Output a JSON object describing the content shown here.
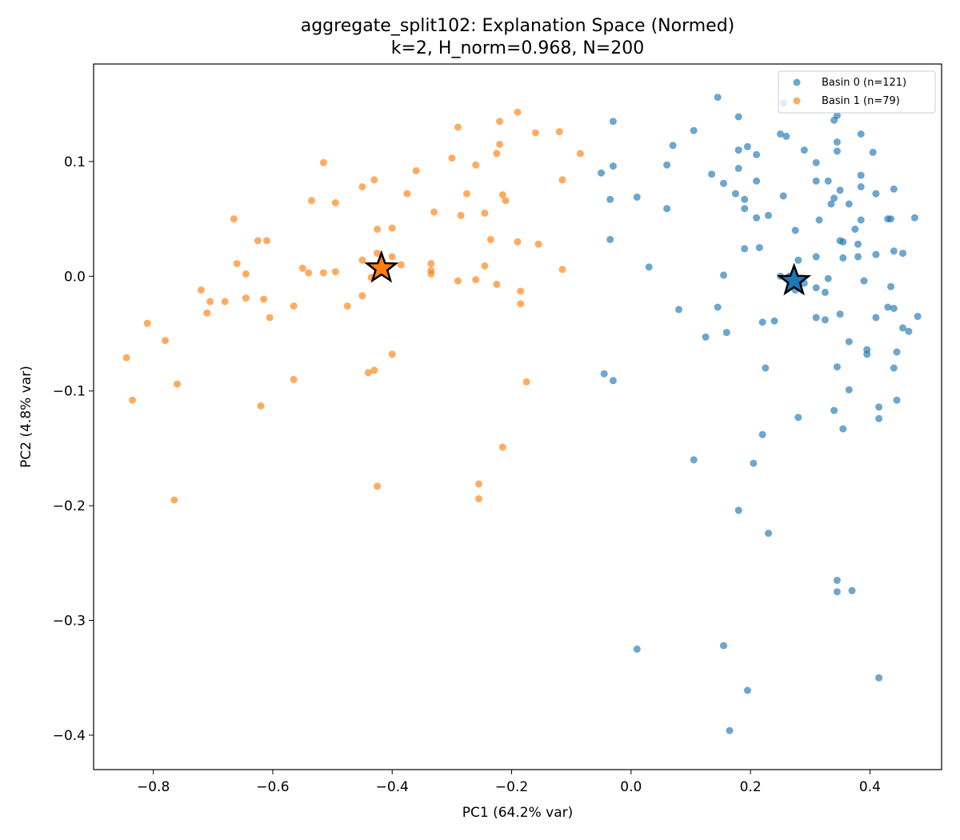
{
  "chart_data": {
    "type": "scatter",
    "title": "aggregate_split102: Explanation Space (Normed)",
    "subtitle": "k=2, H_norm=0.968, N=200",
    "xlabel": "PC1 (64.2% var)",
    "ylabel": "PC2 (4.8% var)",
    "xlim": [
      -0.9,
      0.52
    ],
    "ylim": [
      -0.43,
      0.185
    ],
    "xticks": [
      -0.8,
      -0.6,
      -0.4,
      -0.2,
      0.0,
      0.2,
      0.4
    ],
    "xtick_labels": [
      "−0.8",
      "−0.6",
      "−0.4",
      "−0.2",
      "0.0",
      "0.2",
      "0.4"
    ],
    "yticks": [
      0.1,
      0.0,
      -0.1,
      -0.2,
      -0.3,
      -0.4
    ],
    "ytick_labels": [
      "0.1",
      "0.0",
      "−0.1",
      "−0.2",
      "−0.3",
      "−0.4"
    ],
    "grid": false,
    "legend_position": "top-right",
    "series": [
      {
        "name": "Basin 0 (n=121)",
        "color": "#1f77b4",
        "points": [
          [
            0.145,
            0.156
          ],
          [
            0.255,
            0.151
          ],
          [
            0.18,
            0.139
          ],
          [
            0.345,
            0.14
          ],
          [
            0.34,
            0.136
          ],
          [
            -0.03,
            0.135
          ],
          [
            0.105,
            0.127
          ],
          [
            0.25,
            0.124
          ],
          [
            0.26,
            0.122
          ],
          [
            0.385,
            0.124
          ],
          [
            0.07,
            0.114
          ],
          [
            0.195,
            0.113
          ],
          [
            0.18,
            0.11
          ],
          [
            0.21,
            0.106
          ],
          [
            0.29,
            0.11
          ],
          [
            0.345,
            0.117
          ],
          [
            0.345,
            0.109
          ],
          [
            0.405,
            0.108
          ],
          [
            -0.03,
            0.096
          ],
          [
            -0.05,
            0.09
          ],
          [
            0.06,
            0.097
          ],
          [
            0.135,
            0.089
          ],
          [
            0.18,
            0.094
          ],
          [
            0.31,
            0.099
          ],
          [
            0.385,
            0.088
          ],
          [
            0.155,
            0.081
          ],
          [
            0.21,
            0.083
          ],
          [
            0.31,
            0.083
          ],
          [
            0.33,
            0.083
          ],
          [
            0.385,
            0.078
          ],
          [
            0.35,
            0.075
          ],
          [
            0.41,
            0.072
          ],
          [
            0.44,
            0.076
          ],
          [
            0.175,
            0.072
          ],
          [
            0.19,
            0.067
          ],
          [
            0.255,
            0.07
          ],
          [
            0.34,
            0.068
          ],
          [
            -0.035,
            0.067
          ],
          [
            0.01,
            0.069
          ],
          [
            0.06,
            0.059
          ],
          [
            0.19,
            0.059
          ],
          [
            0.21,
            0.051
          ],
          [
            0.23,
            0.053
          ],
          [
            0.315,
            0.049
          ],
          [
            0.335,
            0.063
          ],
          [
            0.365,
            0.063
          ],
          [
            0.385,
            0.049
          ],
          [
            0.43,
            0.05
          ],
          [
            0.435,
            0.05
          ],
          [
            0.475,
            0.051
          ],
          [
            0.275,
            0.04
          ],
          [
            0.375,
            0.041
          ],
          [
            -0.035,
            0.032
          ],
          [
            0.35,
            0.031
          ],
          [
            0.355,
            0.03
          ],
          [
            0.38,
            0.028
          ],
          [
            0.19,
            0.024
          ],
          [
            0.215,
            0.025
          ],
          [
            0.44,
            0.022
          ],
          [
            0.455,
            0.02
          ],
          [
            0.41,
            0.019
          ],
          [
            0.28,
            0.014
          ],
          [
            0.31,
            0.017
          ],
          [
            0.355,
            0.016
          ],
          [
            0.38,
            0.017
          ],
          [
            0.03,
            0.008
          ],
          [
            0.155,
            0.001
          ],
          [
            0.25,
            0.0
          ],
          [
            0.265,
            0.0
          ],
          [
            0.27,
            -0.005
          ],
          [
            0.275,
            -0.012
          ],
          [
            0.29,
            -0.006
          ],
          [
            0.31,
            -0.01
          ],
          [
            0.325,
            -0.014
          ],
          [
            0.33,
            -0.002
          ],
          [
            0.39,
            -0.004
          ],
          [
            0.435,
            -0.009
          ],
          [
            0.08,
            -0.029
          ],
          [
            0.145,
            -0.027
          ],
          [
            0.22,
            -0.04
          ],
          [
            0.24,
            -0.039
          ],
          [
            0.31,
            -0.036
          ],
          [
            0.325,
            -0.038
          ],
          [
            0.35,
            -0.033
          ],
          [
            0.41,
            -0.036
          ],
          [
            0.43,
            -0.027
          ],
          [
            0.44,
            -0.028
          ],
          [
            0.48,
            -0.035
          ],
          [
            0.455,
            -0.045
          ],
          [
            0.465,
            -0.048
          ],
          [
            0.125,
            -0.053
          ],
          [
            0.16,
            -0.049
          ],
          [
            0.365,
            -0.057
          ],
          [
            0.395,
            -0.064
          ],
          [
            0.395,
            -0.068
          ],
          [
            0.445,
            -0.066
          ],
          [
            -0.045,
            -0.085
          ],
          [
            -0.03,
            -0.091
          ],
          [
            0.225,
            -0.08
          ],
          [
            0.345,
            -0.079
          ],
          [
            0.44,
            -0.08
          ],
          [
            0.365,
            -0.099
          ],
          [
            0.415,
            -0.114
          ],
          [
            0.445,
            -0.108
          ],
          [
            0.28,
            -0.123
          ],
          [
            0.34,
            -0.117
          ],
          [
            0.415,
            -0.124
          ],
          [
            0.22,
            -0.138
          ],
          [
            0.355,
            -0.133
          ],
          [
            0.105,
            -0.16
          ],
          [
            0.205,
            -0.163
          ],
          [
            0.18,
            -0.204
          ],
          [
            0.23,
            -0.224
          ],
          [
            0.345,
            -0.265
          ],
          [
            0.345,
            -0.275
          ],
          [
            0.37,
            -0.274
          ],
          [
            0.01,
            -0.325
          ],
          [
            0.155,
            -0.322
          ],
          [
            0.415,
            -0.35
          ],
          [
            0.195,
            -0.361
          ],
          [
            0.165,
            -0.396
          ]
        ]
      },
      {
        "name": "Basin 1 (n=79)",
        "color": "#ff7f0e",
        "points": [
          [
            -0.19,
            0.143
          ],
          [
            -0.22,
            0.135
          ],
          [
            -0.29,
            0.13
          ],
          [
            -0.16,
            0.125
          ],
          [
            -0.12,
            0.126
          ],
          [
            -0.22,
            0.115
          ],
          [
            -0.225,
            0.107
          ],
          [
            -0.085,
            0.107
          ],
          [
            -0.3,
            0.103
          ],
          [
            -0.26,
            0.097
          ],
          [
            -0.515,
            0.099
          ],
          [
            -0.36,
            0.092
          ],
          [
            -0.43,
            0.084
          ],
          [
            -0.45,
            0.078
          ],
          [
            -0.115,
            0.084
          ],
          [
            -0.375,
            0.072
          ],
          [
            -0.275,
            0.072
          ],
          [
            -0.215,
            0.071
          ],
          [
            -0.21,
            0.066
          ],
          [
            -0.535,
            0.066
          ],
          [
            -0.495,
            0.064
          ],
          [
            -0.33,
            0.056
          ],
          [
            -0.285,
            0.053
          ],
          [
            -0.245,
            0.055
          ],
          [
            -0.665,
            0.05
          ],
          [
            -0.425,
            0.041
          ],
          [
            -0.4,
            0.042
          ],
          [
            -0.625,
            0.031
          ],
          [
            -0.61,
            0.031
          ],
          [
            -0.235,
            0.032
          ],
          [
            -0.19,
            0.03
          ],
          [
            -0.155,
            0.028
          ],
          [
            -0.45,
            0.014
          ],
          [
            -0.425,
            0.02
          ],
          [
            -0.4,
            0.017
          ],
          [
            -0.385,
            0.01
          ],
          [
            -0.335,
            0.011
          ],
          [
            -0.245,
            0.009
          ],
          [
            -0.66,
            0.011
          ],
          [
            -0.55,
            0.007
          ],
          [
            -0.54,
            0.003
          ],
          [
            -0.515,
            0.003
          ],
          [
            -0.495,
            0.004
          ],
          [
            -0.335,
            0.002
          ],
          [
            -0.335,
            0.005
          ],
          [
            -0.115,
            0.006
          ],
          [
            -0.645,
            0.002
          ],
          [
            -0.435,
            -0.001
          ],
          [
            -0.29,
            -0.004
          ],
          [
            -0.26,
            -0.003
          ],
          [
            -0.225,
            -0.007
          ],
          [
            -0.72,
            -0.012
          ],
          [
            -0.185,
            -0.013
          ],
          [
            -0.705,
            -0.022
          ],
          [
            -0.68,
            -0.022
          ],
          [
            -0.645,
            -0.019
          ],
          [
            -0.615,
            -0.02
          ],
          [
            -0.565,
            -0.026
          ],
          [
            -0.475,
            -0.026
          ],
          [
            -0.45,
            -0.017
          ],
          [
            -0.185,
            -0.024
          ],
          [
            -0.71,
            -0.032
          ],
          [
            -0.605,
            -0.036
          ],
          [
            -0.81,
            -0.041
          ],
          [
            -0.78,
            -0.056
          ],
          [
            -0.845,
            -0.071
          ],
          [
            -0.4,
            -0.068
          ],
          [
            -0.44,
            -0.084
          ],
          [
            -0.43,
            -0.082
          ],
          [
            -0.565,
            -0.09
          ],
          [
            -0.76,
            -0.094
          ],
          [
            -0.175,
            -0.092
          ],
          [
            -0.835,
            -0.108
          ],
          [
            -0.62,
            -0.113
          ],
          [
            -0.215,
            -0.149
          ],
          [
            -0.255,
            -0.181
          ],
          [
            -0.425,
            -0.183
          ],
          [
            -0.255,
            -0.194
          ],
          [
            -0.765,
            -0.195
          ]
        ]
      }
    ],
    "centroids": [
      {
        "name": "Basin 0 centroid",
        "x": 0.273,
        "y": -0.004,
        "color": "#1f77b4"
      },
      {
        "name": "Basin 1 centroid",
        "x": -0.418,
        "y": 0.007,
        "color": "#ff7f0e"
      }
    ]
  }
}
